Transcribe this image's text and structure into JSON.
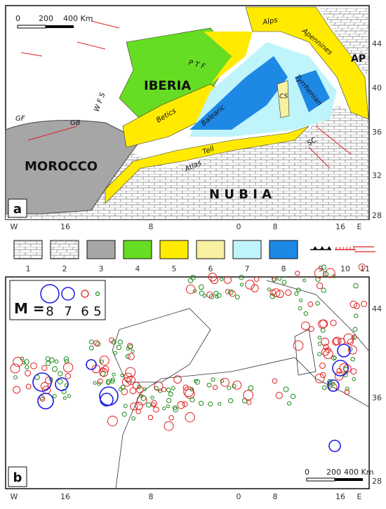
{
  "panel_a": {
    "letter": "a",
    "scale": {
      "zero": "0",
      "mid": "200",
      "end": "400 Km"
    },
    "regions": {
      "iberia": "IBERIA",
      "morocco": "MOROCCO",
      "nubia": "N U B I A",
      "ap": "AP"
    },
    "features": {
      "gf": "GF",
      "gb": "GB",
      "wfs": "W F S",
      "ptf": "P T F",
      "betics": "Betics",
      "balearic": "Balearic",
      "tell": "Tell",
      "atlas": "Atlas",
      "alps": "Alps",
      "apennines": "Apennines",
      "cs": "CS",
      "tyrrhenian": "Tyrrhenian",
      "sc": "SC"
    },
    "lat_labels": [
      "44",
      "40",
      "36",
      "32",
      "28"
    ],
    "lon_labels": [
      "W",
      "16",
      "8",
      "0",
      "8",
      "16",
      "E"
    ]
  },
  "legend": {
    "items": [
      "1",
      "2",
      "3",
      "4",
      "5",
      "6",
      "7",
      "8",
      "9",
      "10",
      "11"
    ]
  },
  "panel_b": {
    "letter": "b",
    "magnitude": {
      "prefix": "M =",
      "values": [
        "8",
        "7",
        "6",
        "5"
      ]
    },
    "scale": {
      "zero": "0",
      "mid": "200",
      "end": "400 Km"
    },
    "lat_labels": [
      "44",
      "36",
      "28"
    ],
    "lon_labels": [
      "W",
      "16",
      "8",
      "0",
      "8",
      "16",
      "E"
    ]
  }
}
